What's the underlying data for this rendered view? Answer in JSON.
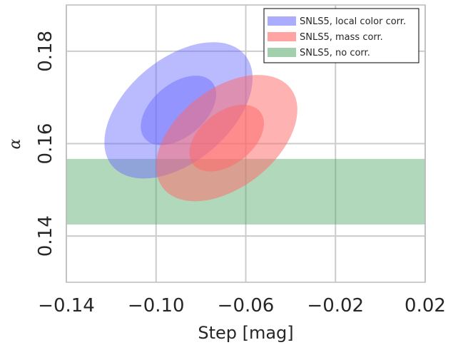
{
  "chart_data": {
    "type": "contour",
    "xlabel": "Step [mag]",
    "ylabel": "α",
    "xlim": [
      -0.14,
      0.02
    ],
    "ylim": [
      0.13,
      0.19
    ],
    "x_ticks": [
      -0.14,
      -0.1,
      -0.06,
      -0.02,
      0.02
    ],
    "x_tick_labels": [
      "−0.14",
      "−0.10",
      "−0.06",
      "−0.02",
      "0.02"
    ],
    "y_ticks": [
      0.14,
      0.16,
      0.18
    ],
    "y_tick_labels": [
      "0.14",
      "0.16",
      "0.18"
    ],
    "grid": true,
    "legend_position": "top-right",
    "series": [
      {
        "name": "SNLS5, local color corr.",
        "color": "#6666ff",
        "kind": "ellipse",
        "center": [
          -0.09,
          0.1672
        ],
        "contours": [
          {
            "level": "2-sigma",
            "semi_x": 0.023,
            "semi_y": 0.0187,
            "angle_deg": 50,
            "opacity": 0.45
          },
          {
            "level": "1-sigma",
            "semi_x": 0.0118,
            "semi_y": 0.0095,
            "angle_deg": 50,
            "opacity": 0.45
          }
        ]
      },
      {
        "name": "SNLS5, mass corr.",
        "color": "#ff6666",
        "kind": "ellipse",
        "center": [
          -0.0685,
          0.1612
        ],
        "contours": [
          {
            "level": "2-sigma",
            "semi_x": 0.022,
            "semi_y": 0.0175,
            "angle_deg": 52,
            "opacity": 0.5
          },
          {
            "level": "1-sigma",
            "semi_x": 0.0117,
            "semi_y": 0.0092,
            "angle_deg": 52,
            "opacity": 0.5
          }
        ]
      },
      {
        "name": "SNLS5, no corr.",
        "color": "#55a868",
        "kind": "band",
        "y_range": [
          0.1425,
          0.1567
        ],
        "opacity": 0.45
      }
    ]
  }
}
